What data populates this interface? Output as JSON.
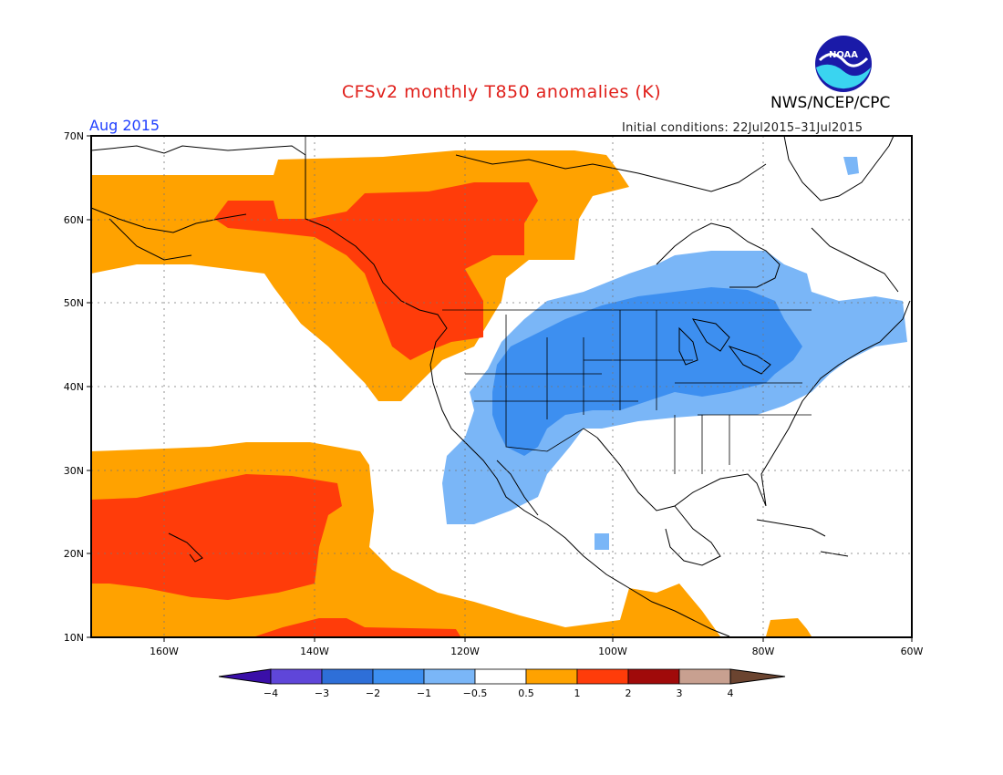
{
  "header": {
    "title": "CFSv2 monthly T850 anomalies (K)",
    "agency": "NWS/NCEP/CPC",
    "month": "Aug 2015",
    "initial_conditions": "Initial conditions: 22Jul2015–31Jul2015",
    "logo_text": "NOAA"
  },
  "map": {
    "lon_range": [
      -170,
      -60
    ],
    "lat_range": [
      10,
      70
    ],
    "lat_ticks": [
      "70N",
      "60N",
      "50N",
      "40N",
      "30N",
      "20N",
      "10N"
    ],
    "lon_ticks": [
      "160W",
      "140W",
      "120W",
      "100W",
      "80W",
      "60W"
    ]
  },
  "colorbar": {
    "labels": [
      "−4",
      "−3",
      "−2",
      "−1",
      "−0.5",
      "0.5",
      "1",
      "2",
      "3",
      "4"
    ],
    "colors": [
      "#3a0fa8",
      "#5f46d9",
      "#2e6fd8",
      "#3d8ff0",
      "#7ab6f7",
      "#ffffff",
      "#ffa200",
      "#ff3c0a",
      "#a00a0a",
      "#c8a090",
      "#6b4430"
    ]
  }
}
